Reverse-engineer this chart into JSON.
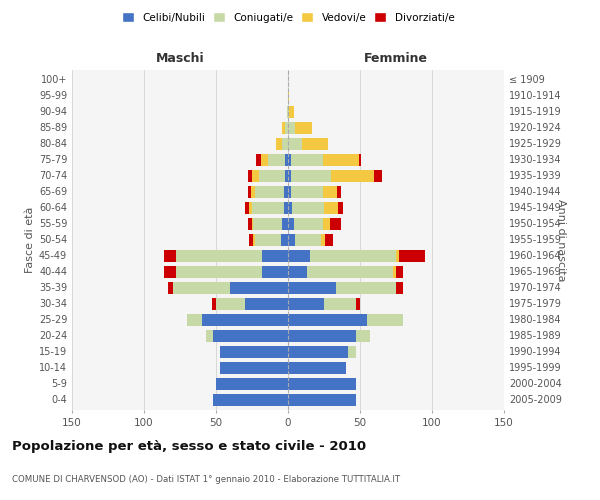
{
  "age_groups": [
    "0-4",
    "5-9",
    "10-14",
    "15-19",
    "20-24",
    "25-29",
    "30-34",
    "35-39",
    "40-44",
    "45-49",
    "50-54",
    "55-59",
    "60-64",
    "65-69",
    "70-74",
    "75-79",
    "80-84",
    "85-89",
    "90-94",
    "95-99",
    "100+"
  ],
  "birth_years": [
    "2005-2009",
    "2000-2004",
    "1995-1999",
    "1990-1994",
    "1985-1989",
    "1980-1984",
    "1975-1979",
    "1970-1974",
    "1965-1969",
    "1960-1964",
    "1955-1959",
    "1950-1954",
    "1945-1949",
    "1940-1944",
    "1935-1939",
    "1930-1934",
    "1925-1929",
    "1920-1924",
    "1915-1919",
    "1910-1914",
    "≤ 1909"
  ],
  "maschi": {
    "celibi": [
      52,
      50,
      47,
      47,
      52,
      60,
      30,
      40,
      18,
      18,
      5,
      4,
      3,
      3,
      2,
      2,
      0,
      0,
      0,
      0,
      0
    ],
    "coniugati": [
      0,
      0,
      0,
      0,
      5,
      10,
      20,
      40,
      60,
      60,
      18,
      20,
      22,
      20,
      18,
      12,
      4,
      2,
      1,
      0,
      0
    ],
    "vedovi": [
      0,
      0,
      0,
      0,
      0,
      0,
      0,
      0,
      0,
      0,
      1,
      1,
      2,
      3,
      5,
      5,
      4,
      2,
      0,
      0,
      0
    ],
    "divorziati": [
      0,
      0,
      0,
      0,
      0,
      0,
      3,
      3,
      8,
      8,
      3,
      3,
      3,
      2,
      3,
      3,
      0,
      0,
      0,
      0,
      0
    ]
  },
  "femmine": {
    "nubili": [
      47,
      47,
      40,
      42,
      47,
      55,
      25,
      33,
      13,
      15,
      5,
      4,
      3,
      2,
      2,
      2,
      0,
      0,
      0,
      0,
      0
    ],
    "coniugate": [
      0,
      0,
      0,
      5,
      10,
      25,
      22,
      42,
      60,
      60,
      18,
      20,
      22,
      22,
      28,
      22,
      10,
      5,
      1,
      0,
      0
    ],
    "vedove": [
      0,
      0,
      0,
      0,
      0,
      0,
      0,
      0,
      2,
      2,
      3,
      5,
      10,
      10,
      30,
      25,
      18,
      12,
      3,
      1,
      0
    ],
    "divorziate": [
      0,
      0,
      0,
      0,
      0,
      0,
      3,
      5,
      5,
      18,
      5,
      8,
      3,
      3,
      5,
      2,
      0,
      0,
      0,
      0,
      0
    ]
  },
  "colors": {
    "celibi": "#4472c4",
    "coniugati": "#c8d9a8",
    "vedovi": "#f5c842",
    "divorziati": "#cc0000"
  },
  "title": "Popolazione per età, sesso e stato civile - 2010",
  "subtitle": "COMUNE DI CHARVENSOD (AO) - Dati ISTAT 1° gennaio 2010 - Elaborazione TUTTITALIA.IT",
  "xlabel_left": "Maschi",
  "xlabel_right": "Femmine",
  "ylabel_left": "Fasce di età",
  "ylabel_right": "Anni di nascita",
  "xlim": 150,
  "legend_labels": [
    "Celibi/Nubili",
    "Coniugati/e",
    "Vedovi/e",
    "Divorziati/e"
  ]
}
